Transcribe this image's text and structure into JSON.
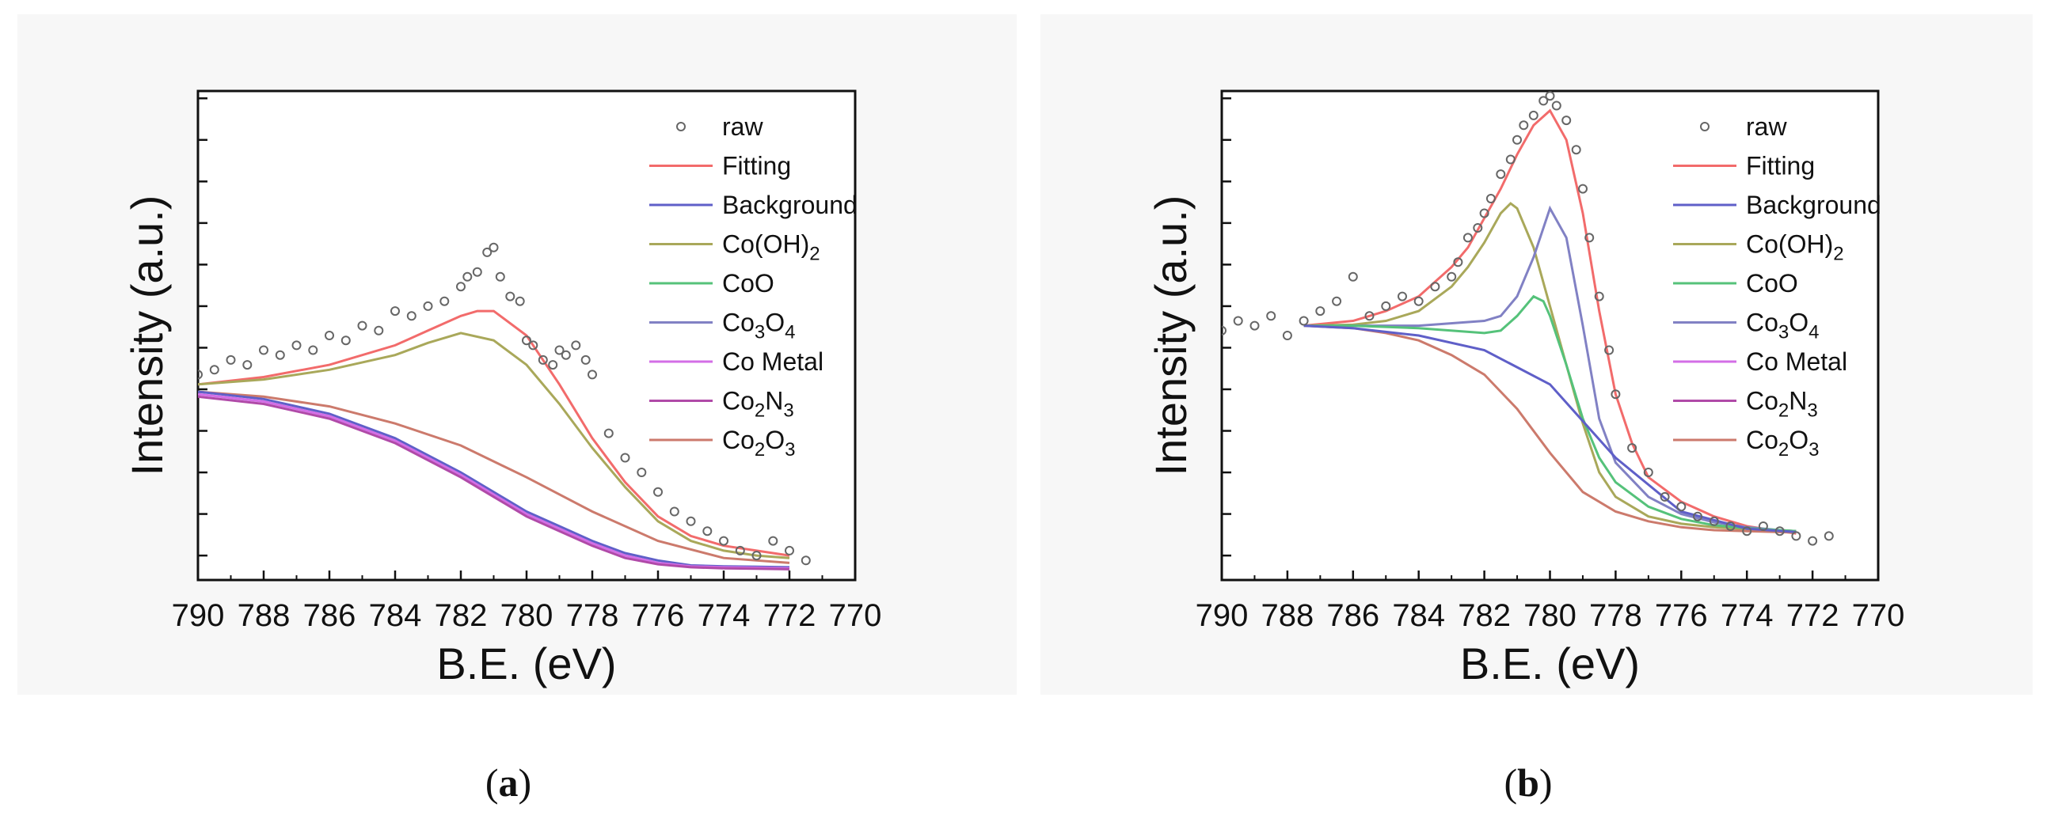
{
  "chart_data": [
    {
      "panel": "a",
      "type": "line",
      "xlabel": "B.E. (eV)",
      "ylabel": "Intensity (a.u.)",
      "xlim": [
        790,
        770
      ],
      "ylim": [
        0,
        100
      ],
      "xticks": [
        790,
        788,
        786,
        784,
        782,
        780,
        778,
        776,
        774,
        772,
        770
      ],
      "legend_position": "top-right",
      "legend": [
        "raw",
        "Fitting",
        "Background",
        "Co(OH)2",
        "CoO",
        "Co3O4",
        "Co Metal",
        "Co2N3",
        "Co2O3"
      ],
      "colors": {
        "raw": "#666666",
        "Fitting": "#f26b6b",
        "Background": "#5f5fc8",
        "Co(OH)2": "#a9a85a",
        "CoO": "#55c27a",
        "Co3O4": "#8181c4",
        "Co Metal": "#d36ee6",
        "Co2N3": "#b04aa8",
        "Co2O3": "#cc7a6c"
      },
      "series": [
        {
          "name": "Fitting",
          "x": [
            790,
            788,
            786,
            784,
            783,
            782,
            781.5,
            781,
            780,
            779,
            778,
            777,
            776,
            775,
            774,
            773,
            772
          ],
          "values": [
            40,
            41.5,
            44,
            48,
            51,
            54,
            55,
            55,
            50,
            40,
            29,
            20,
            13,
            9,
            7,
            6,
            5
          ]
        },
        {
          "name": "Co(OH)2",
          "x": [
            790,
            788,
            786,
            784,
            783,
            782,
            781,
            780,
            779,
            778,
            777,
            776,
            775,
            774,
            773,
            772
          ],
          "values": [
            40,
            41,
            43,
            46,
            48.5,
            50.5,
            49,
            44,
            36,
            27,
            19,
            12,
            8,
            6,
            5,
            4.5
          ]
        },
        {
          "name": "Co2O3",
          "x": [
            790,
            788,
            786,
            784,
            782,
            780,
            778,
            776,
            774,
            772
          ],
          "values": [
            38.5,
            37.5,
            35.5,
            32,
            27.5,
            21,
            14,
            8,
            4.5,
            3.5
          ]
        },
        {
          "name": "Background",
          "x": [
            790,
            788,
            786,
            784,
            782,
            781,
            780,
            779,
            778,
            777,
            776,
            775,
            774,
            773,
            772
          ],
          "values": [
            38.5,
            37,
            34,
            29,
            22,
            18,
            14,
            11,
            8,
            5.5,
            4,
            3,
            2.8,
            2.7,
            2.6
          ]
        },
        {
          "name": "Co Metal",
          "x": [
            790,
            788,
            786,
            784,
            782,
            781,
            780,
            779,
            778,
            777,
            776,
            775,
            774,
            773,
            772
          ],
          "values": [
            38,
            36.5,
            33.5,
            28.5,
            21.5,
            17.5,
            13.5,
            10.5,
            7.5,
            5,
            3.5,
            2.8,
            2.6,
            2.5,
            2.4
          ]
        },
        {
          "name": "Co2N3",
          "x": [
            790,
            788,
            786,
            784,
            782,
            781,
            780,
            779,
            778,
            777,
            776,
            775,
            774,
            773,
            772
          ],
          "values": [
            37.5,
            36,
            33,
            28,
            21,
            17,
            13,
            10,
            7,
            4.5,
            3.2,
            2.6,
            2.4,
            2.3,
            2.2
          ]
        },
        {
          "name": "raw",
          "x": [
            790,
            789.5,
            789,
            788.5,
            788,
            787.5,
            787,
            786.5,
            786,
            785.5,
            785,
            784.5,
            784,
            783.5,
            783,
            782.5,
            782,
            781.8,
            781.5,
            781.2,
            781,
            780.8,
            780.5,
            780.2,
            780,
            779.8,
            779.5,
            779.2,
            779,
            778.8,
            778.5,
            778.2,
            778,
            777.5,
            777,
            776.5,
            776,
            775.5,
            775,
            774.5,
            774,
            773.5,
            773,
            772.5,
            772,
            771.5
          ],
          "values": [
            42,
            43,
            45,
            44,
            47,
            46,
            48,
            47,
            50,
            49,
            52,
            51,
            55,
            54,
            56,
            57,
            60,
            62,
            63,
            67,
            68,
            62,
            58,
            57,
            49,
            48,
            45,
            44,
            47,
            46,
            48,
            45,
            42,
            30,
            25,
            22,
            18,
            14,
            12,
            10,
            8,
            6,
            5,
            8,
            6,
            4
          ]
        }
      ]
    },
    {
      "panel": "b",
      "type": "line",
      "xlabel": "B.E. (eV)",
      "ylabel": "Intensity (a.u.)",
      "xlim": [
        790,
        770
      ],
      "ylim": [
        0,
        100
      ],
      "xticks": [
        790,
        788,
        786,
        784,
        782,
        780,
        778,
        776,
        774,
        772,
        770
      ],
      "legend_position": "top-right",
      "legend": [
        "raw",
        "Fitting",
        "Background",
        "Co(OH)2",
        "CoO",
        "Co3O4",
        "Co Metal",
        "Co2N3",
        "Co2O3"
      ],
      "colors": {
        "raw": "#666666",
        "Fitting": "#f26b6b",
        "Background": "#5f5fc8",
        "Co(OH)2": "#a9a85a",
        "CoO": "#55c27a",
        "Co3O4": "#8181c4",
        "Co Metal": "#d36ee6",
        "Co2N3": "#b04aa8",
        "Co2O3": "#cc7a6c"
      },
      "series": [
        {
          "name": "Fitting",
          "x": [
            787.5,
            786,
            785,
            784,
            783,
            782.5,
            782,
            781.5,
            781,
            780.5,
            780,
            779.5,
            779,
            778.5,
            778,
            777.5,
            777,
            776,
            775,
            774,
            773,
            772.5
          ],
          "values": [
            52,
            53,
            55,
            58,
            64,
            68,
            74,
            80,
            87,
            93,
            96,
            90,
            75,
            55,
            38,
            28,
            21,
            16,
            13,
            11,
            10,
            9.5
          ]
        },
        {
          "name": "Co(OH)2",
          "x": [
            787.5,
            786,
            785,
            784,
            783,
            782.5,
            782,
            781.5,
            781.2,
            781,
            780.5,
            780,
            779.5,
            779,
            778.5,
            778,
            777,
            776,
            775,
            774,
            773,
            772.5
          ],
          "values": [
            52,
            52.2,
            53,
            55,
            60,
            64,
            69,
            75,
            77,
            76,
            68,
            56,
            44,
            32,
            22,
            17,
            13,
            11.5,
            10.8,
            10.4,
            10.2,
            10
          ]
        },
        {
          "name": "Co3O4",
          "x": [
            787.5,
            786,
            784,
            782,
            781.5,
            781,
            780.5,
            780,
            779.5,
            779,
            778.5,
            778,
            777,
            776,
            775,
            774,
            773,
            772.5
          ],
          "values": [
            52,
            52,
            52,
            53,
            54,
            58,
            66,
            76,
            70,
            52,
            33,
            24,
            17,
            13.5,
            11.8,
            10.8,
            10.2,
            10
          ]
        },
        {
          "name": "CoO",
          "x": [
            787.5,
            786,
            784,
            782,
            781.5,
            781,
            780.5,
            780.2,
            780,
            779.5,
            779,
            778.5,
            778,
            777,
            776,
            775,
            774,
            773,
            772.5
          ],
          "values": [
            52,
            52,
            51.5,
            50.5,
            51,
            54,
            58,
            57,
            54,
            44,
            33,
            25,
            20,
            15,
            12.5,
            11.2,
            10.6,
            10.2,
            10
          ]
        },
        {
          "name": "Co2O3",
          "x": [
            787.5,
            786,
            785,
            784,
            783,
            782,
            781,
            780,
            779,
            778,
            777,
            776,
            775,
            774,
            773,
            772.5
          ],
          "values": [
            52,
            51.5,
            50.5,
            49,
            46,
            42,
            35,
            26,
            18,
            14,
            12,
            10.8,
            10.2,
            10,
            9.8,
            9.7
          ]
        },
        {
          "name": "Background",
          "x": [
            787.5,
            786,
            784,
            782,
            780,
            778,
            776,
            774,
            772.5
          ],
          "values": [
            52,
            51.5,
            50,
            47,
            40,
            25,
            14,
            10.5,
            9.8
          ]
        },
        {
          "name": "raw",
          "x": [
            790,
            789.5,
            789,
            788.5,
            788,
            787.5,
            787,
            786.5,
            786,
            785.5,
            785,
            784.5,
            784,
            783.5,
            783,
            782.8,
            782.5,
            782.2,
            782,
            781.8,
            781.5,
            781.2,
            781,
            780.8,
            780.5,
            780.2,
            780,
            779.8,
            779.5,
            779.2,
            779,
            778.8,
            778.5,
            778.2,
            778,
            777.5,
            777,
            776.5,
            776,
            775.5,
            775,
            774.5,
            774,
            773.5,
            773,
            772.5,
            772,
            771.5
          ],
          "values": [
            51,
            53,
            52,
            54,
            50,
            53,
            55,
            57,
            62,
            54,
            56,
            58,
            57,
            60,
            62,
            65,
            70,
            72,
            75,
            78,
            83,
            86,
            90,
            93,
            95,
            98,
            99,
            97,
            94,
            88,
            80,
            70,
            58,
            47,
            38,
            27,
            22,
            17,
            15,
            13,
            12,
            11,
            10,
            11,
            10,
            9,
            8,
            9
          ]
        }
      ]
    }
  ],
  "captions": [
    {
      "open": "(",
      "letter": "a",
      "close": ")"
    },
    {
      "open": "(",
      "letter": "b",
      "close": ")"
    }
  ]
}
